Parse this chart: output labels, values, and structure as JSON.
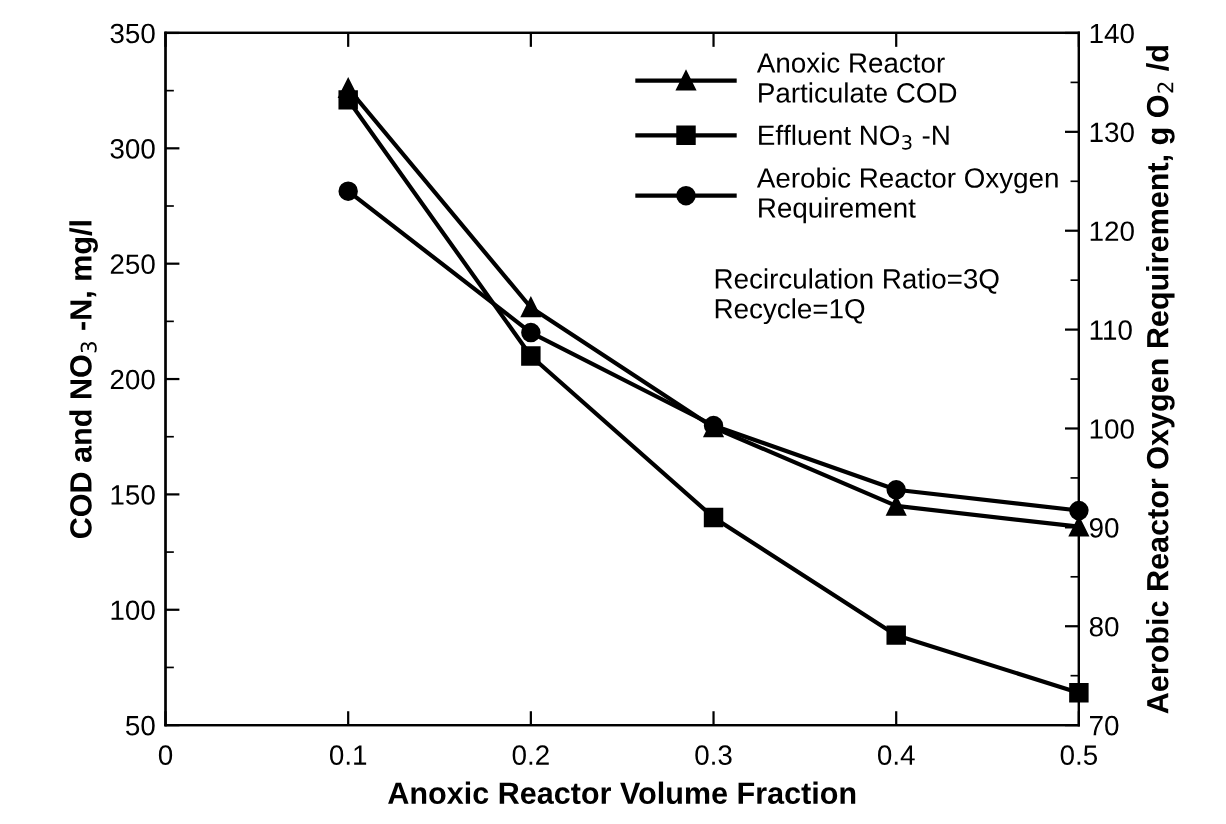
{
  "chart_data": {
    "type": "line",
    "xlabel": "Anoxic Reactor Volume Fraction",
    "ylabel": "COD and NO$_{3}$ -N, mg/l",
    "y2label": "Aerobic Reactor Oxygen Requirement, g O$_{2}$ /d",
    "x": [
      0.1,
      0.2,
      0.3,
      0.4,
      0.5
    ],
    "series": [
      {
        "name": "Anoxic Reactor\nParticulate COD",
        "color": "#000000",
        "marker": "triangle",
        "values": [
          326,
          231,
          179,
          145,
          136
        ]
      },
      {
        "name": "Effluent NO$_{3}$ -N",
        "color": "#000000",
        "marker": "square",
        "values": [
          321,
          210,
          140,
          89,
          64
        ]
      },
      {
        "name": "Aerobic Reactor Oxygen\nRequirement",
        "color": "#000000",
        "marker": "circle",
        "axis": "y2",
        "values": [
          124,
          109.7,
          100.3,
          93.8,
          91.7
        ]
      }
    ],
    "xlim": [
      0,
      0.5
    ],
    "xticks": [
      0,
      0.1,
      0.2,
      0.3,
      0.4,
      0.5
    ],
    "ylim": [
      50,
      350
    ],
    "yticks": [
      50,
      100,
      150,
      200,
      250,
      300,
      350
    ],
    "y2lim": [
      70,
      140
    ],
    "y2ticks": [
      70,
      80,
      90,
      100,
      110,
      120,
      130,
      140
    ],
    "annotations": [
      "Recirculation Ratio=3Q\nRecycle=1Q"
    ],
    "legend": "top right",
    "grid": false,
    "line_style": "solid"
  }
}
